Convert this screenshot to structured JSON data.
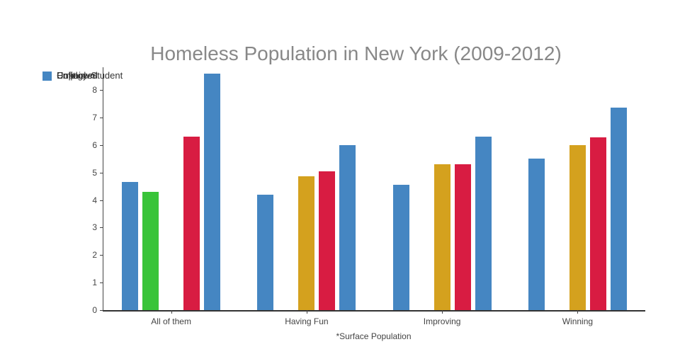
{
  "title": "Homeless Population in New York (2009-2012)",
  "legend": {
    "marker_color": "#4586c2",
    "labels": [
      "Employed",
      "Unfit",
      "Unknown",
      "Unpaid",
      "College-Student"
    ]
  },
  "x_axis_title": "*Surface Population",
  "chart_data": {
    "type": "bar",
    "title": "Homeless Population in New York (2009-2012)",
    "xlabel": "*Surface Population",
    "ylabel": "",
    "categories": [
      "All of them",
      "Having Fun",
      "Improving",
      "Winning"
    ],
    "series": [
      {
        "name": "Employed",
        "color": "#4586c2",
        "values": [
          4.65,
          4.2,
          4.55,
          5.5
        ]
      },
      {
        "name": "Unfit",
        "color": "#39c439",
        "values": [
          4.3,
          null,
          null,
          null
        ]
      },
      {
        "name": "Unknown",
        "color": "#d4a11e",
        "values": [
          null,
          4.85,
          5.3,
          6.0
        ]
      },
      {
        "name": "Unpaid",
        "color": "#d81c42",
        "values": [
          6.3,
          5.05,
          5.3,
          6.28
        ]
      },
      {
        "name": "College-Student",
        "color": "#4586c2",
        "values": [
          8.6,
          6.0,
          6.3,
          7.35
        ]
      }
    ],
    "ylim": [
      0,
      8.8
    ],
    "yticks": [
      0,
      1,
      2,
      3,
      4,
      5,
      6,
      7,
      8
    ],
    "grid": false,
    "legend_position": "top-left"
  }
}
